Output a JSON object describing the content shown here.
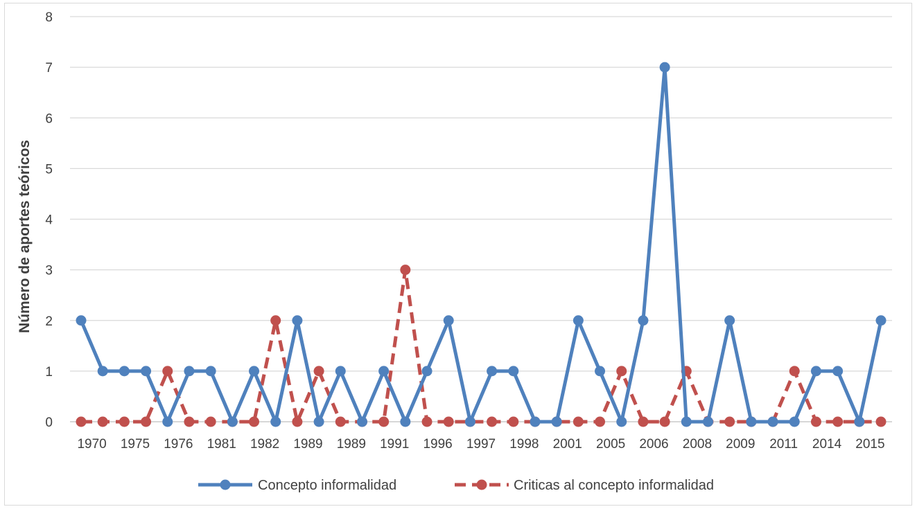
{
  "chart_data": {
    "type": "line",
    "ylabel": "Número de aportes teóricos",
    "ylim": [
      0,
      8
    ],
    "yticks": [
      "0",
      "1",
      "2",
      "3",
      "4",
      "5",
      "6",
      "7",
      "8"
    ],
    "grid": true,
    "legend_position": "bottom",
    "x_tick_labels": [
      "1970",
      "1975",
      "1976",
      "1981",
      "1982",
      "1989",
      "1989",
      "1991",
      "1996",
      "1997",
      "1998",
      "2001",
      "2005",
      "2006",
      "2008",
      "2009",
      "2011",
      "2014",
      "2015"
    ],
    "point_count": 38,
    "series": [
      {
        "name": "Concepto informalidad",
        "color": "#4f81bd",
        "style": "solid",
        "values": [
          2,
          1,
          1,
          1,
          0,
          1,
          1,
          0,
          1,
          0,
          2,
          0,
          1,
          0,
          1,
          0,
          1,
          2,
          0,
          1,
          1,
          0,
          0,
          2,
          1,
          0,
          2,
          7,
          0,
          0,
          2,
          0,
          0,
          0,
          1,
          1,
          0,
          2
        ]
      },
      {
        "name": "Criticas al concepto informalidad",
        "color": "#c0504d",
        "style": "dashed",
        "values": [
          0,
          0,
          0,
          0,
          1,
          0,
          0,
          0,
          0,
          2,
          0,
          1,
          0,
          0,
          0,
          3,
          0,
          0,
          0,
          0,
          0,
          0,
          0,
          0,
          0,
          1,
          0,
          0,
          1,
          0,
          0,
          0,
          0,
          1,
          0,
          0,
          0,
          0
        ]
      }
    ]
  }
}
